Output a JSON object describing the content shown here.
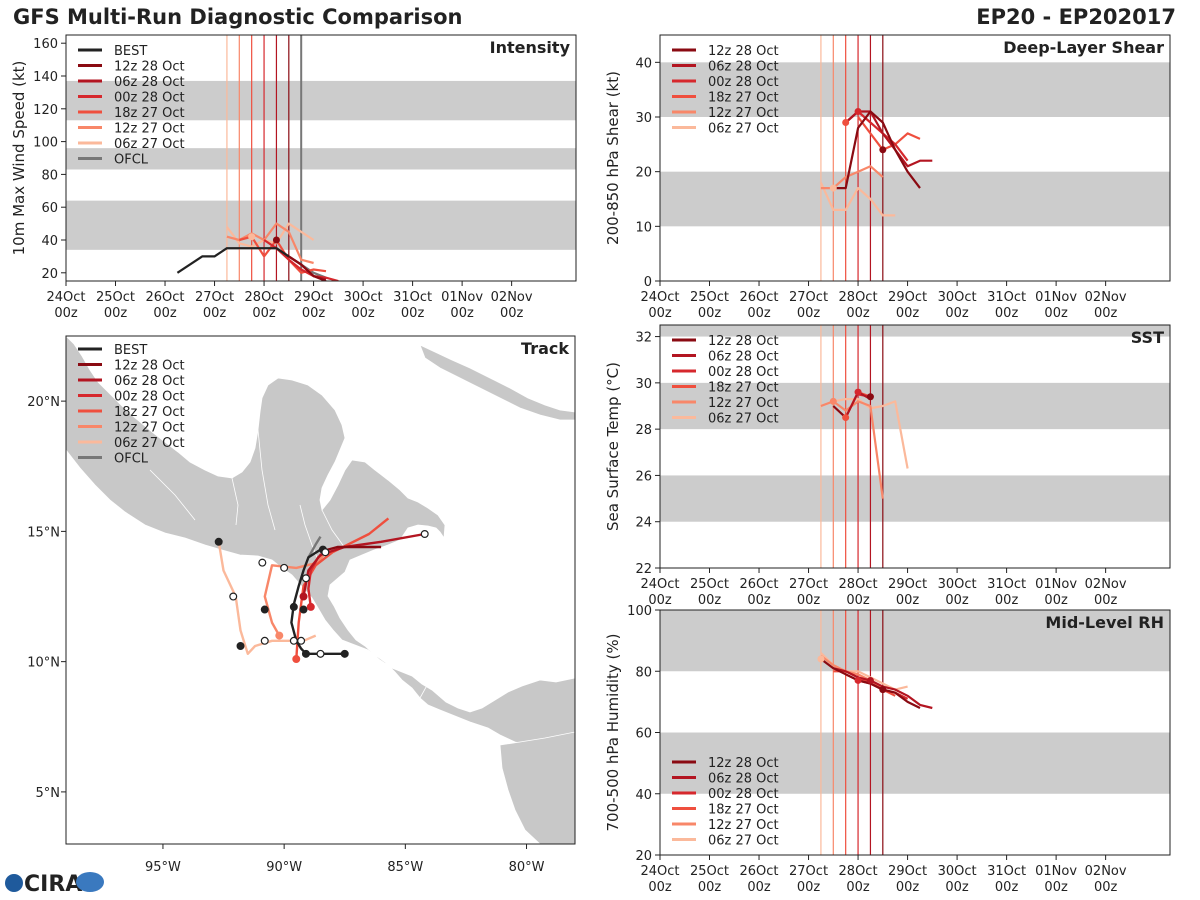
{
  "page": {
    "title_left": "GFS Multi-Run Diagnostic Comparison",
    "title_right": "EP20 - EP202017",
    "logo_text": "CIRA"
  },
  "time_ticks": [
    [
      "24Oct",
      "00z"
    ],
    [
      "25Oct",
      "00z"
    ],
    [
      "26Oct",
      "00z"
    ],
    [
      "27Oct",
      "00z"
    ],
    [
      "28Oct",
      "00z"
    ],
    [
      "29Oct",
      "00z"
    ],
    [
      "30Oct",
      "00z"
    ],
    [
      "31Oct",
      "00z"
    ],
    [
      "01Nov",
      "00z"
    ],
    [
      "02Nov",
      "00z"
    ]
  ],
  "runs": [
    {
      "name": "12z 28 Oct",
      "color": "#8a0a12",
      "init_day": 4.5
    },
    {
      "name": "06z 28 Oct",
      "color": "#b31521",
      "init_day": 4.25
    },
    {
      "name": "00z 28 Oct",
      "color": "#d6282d",
      "init_day": 4.0
    },
    {
      "name": "18z 27 Oct",
      "color": "#ef4f3e",
      "init_day": 3.75
    },
    {
      "name": "12z 27 Oct",
      "color": "#f88769",
      "init_day": 3.5
    },
    {
      "name": "06z 27 Oct",
      "color": "#fbb99b",
      "init_day": 3.25
    }
  ],
  "best_color": "#222222",
  "ofcl_color": "#777777",
  "chart_data": [
    {
      "id": "intensity",
      "type": "line",
      "panel_label": "Intensity",
      "ylabel": "10m Max Wind Speed (kt)",
      "xlim": [
        0,
        10.3
      ],
      "ylim": [
        15,
        165
      ],
      "yticks": [
        20,
        40,
        60,
        80,
        100,
        120,
        140,
        160
      ],
      "bands": [
        [
          34,
          64
        ],
        [
          83,
          96
        ],
        [
          113,
          137
        ]
      ],
      "legend": [
        "BEST",
        "12z 28 Oct",
        "06z 28 Oct",
        "00z 28 Oct",
        "18z 27 Oct",
        "12z 27 Oct",
        "06z 27 Oct",
        "OFCL"
      ],
      "ofcl_line_day": 4.75,
      "series": [
        {
          "name": "BEST",
          "x": [
            2.25,
            2.75,
            3.0,
            3.25,
            3.5,
            3.75,
            4.0,
            4.25,
            4.5
          ],
          "y": [
            20,
            30,
            30,
            35,
            35,
            35,
            35,
            35,
            30
          ]
        },
        {
          "name": "12z 28 Oct",
          "x": [
            4.5,
            4.75,
            5.0,
            5.25
          ],
          "y": [
            30,
            25,
            18,
            15
          ]
        },
        {
          "name": "06z 28 Oct",
          "x": [
            4.25,
            4.5,
            4.75,
            5.0,
            5.25
          ],
          "y": [
            35,
            30,
            25,
            18,
            16
          ]
        },
        {
          "name": "00z 28 Oct",
          "x": [
            4.0,
            4.25,
            4.5,
            4.75,
            5.0,
            5.25,
            5.5
          ],
          "y": [
            40,
            35,
            28,
            22,
            18,
            17,
            15
          ]
        },
        {
          "name": "18z 27 Oct",
          "x": [
            3.5,
            3.75,
            4.0,
            4.25,
            4.5,
            4.75,
            5.0,
            5.25
          ],
          "y": [
            40,
            42,
            30,
            40,
            28,
            20,
            22,
            21
          ]
        },
        {
          "name": "12z 27 Oct",
          "x": [
            3.25,
            3.5,
            3.75,
            4.0,
            4.25,
            4.5,
            4.75,
            5.0
          ],
          "y": [
            42,
            40,
            44,
            40,
            50,
            45,
            28,
            26
          ]
        },
        {
          "name": "06z 27 Oct",
          "x": [
            3.25,
            3.5,
            3.75,
            4.0,
            4.25,
            4.5,
            4.75,
            5.0
          ],
          "y": [
            48,
            38,
            36,
            40,
            38,
            50,
            45,
            40
          ]
        },
        {
          "name": "OFCL",
          "x": [
            4.5,
            4.75,
            5.0,
            5.25
          ],
          "y": [
            30,
            25,
            20,
            17
          ]
        }
      ],
      "markers": [
        {
          "x": 3.75,
          "y": 42,
          "s": "06z 27 Oct"
        },
        {
          "x": 4.25,
          "y": 40,
          "s": "12z 28 Oct"
        }
      ]
    },
    {
      "id": "shear",
      "type": "line",
      "panel_label": "Deep-Layer Shear",
      "ylabel": "200-850 hPa Shear (kt)",
      "xlim": [
        0,
        10.3
      ],
      "ylim": [
        0,
        45
      ],
      "yticks": [
        0,
        10,
        20,
        30,
        40
      ],
      "bands": [
        [
          10,
          20
        ],
        [
          30,
          40
        ]
      ],
      "legend": [
        "12z 28 Oct",
        "06z 28 Oct",
        "00z 28 Oct",
        "18z 27 Oct",
        "12z 27 Oct",
        "06z 27 Oct"
      ],
      "series": [
        {
          "name": "12z 28 Oct",
          "x": [
            3.5,
            3.75,
            4.0,
            4.25,
            4.5,
            4.75,
            5.0,
            5.25
          ],
          "y": [
            17,
            17,
            28,
            31,
            29,
            24,
            20,
            17
          ]
        },
        {
          "name": "06z 28 Oct",
          "x": [
            3.75,
            4.0,
            4.25,
            4.5,
            4.75,
            5.0,
            5.25,
            5.5
          ],
          "y": [
            29,
            31,
            31,
            27,
            24,
            21,
            22,
            22
          ]
        },
        {
          "name": "00z 28 Oct",
          "x": [
            3.75,
            4.0,
            4.25,
            4.5,
            4.75,
            5.0
          ],
          "y": [
            29,
            31,
            29,
            27,
            25,
            22
          ]
        },
        {
          "name": "18z 27 Oct",
          "x": [
            4.0,
            4.25,
            4.5,
            4.75,
            5.0,
            5.25
          ],
          "y": [
            30,
            27,
            24,
            25,
            27,
            26
          ]
        },
        {
          "name": "12z 27 Oct",
          "x": [
            3.25,
            3.5,
            3.75,
            4.0,
            4.25,
            4.5
          ],
          "y": [
            17,
            17,
            19,
            20,
            21,
            19
          ]
        },
        {
          "name": "06z 27 Oct",
          "x": [
            3.25,
            3.5,
            3.75,
            4.0,
            4.25,
            4.5,
            4.75
          ],
          "y": [
            18,
            13,
            13,
            17,
            15,
            12,
            12
          ]
        }
      ],
      "markers": [
        {
          "x": 4.0,
          "y": 31,
          "s": "00z 28 Oct"
        },
        {
          "x": 4.5,
          "y": 24,
          "s": "12z 28 Oct"
        },
        {
          "x": 3.75,
          "y": 29,
          "s": "18z 27 Oct"
        },
        {
          "x": 3.5,
          "y": 17,
          "s": "06z 27 Oct"
        }
      ]
    },
    {
      "id": "sst",
      "type": "line",
      "panel_label": "SST",
      "ylabel": "Sea Surface Temp (°C)",
      "xlim": [
        0,
        10.3
      ],
      "ylim": [
        22,
        32.5
      ],
      "yticks": [
        22,
        24,
        26,
        28,
        30,
        32
      ],
      "bands": [
        [
          24,
          26
        ],
        [
          28,
          30
        ],
        [
          32,
          32.5
        ]
      ],
      "legend": [
        "12z 28 Oct",
        "06z 28 Oct",
        "00z 28 Oct",
        "18z 27 Oct",
        "12z 27 Oct",
        "06z 27 Oct"
      ],
      "series": [
        {
          "name": "12z 28 Oct",
          "x": [
            3.5,
            3.75
          ],
          "y": [
            29.0,
            28.5
          ]
        },
        {
          "name": "06z 28 Oct",
          "x": [
            3.75,
            4.0,
            4.25
          ],
          "y": [
            28.5,
            29.6,
            29.3
          ]
        },
        {
          "name": "00z 28 Oct",
          "x": [
            4.0,
            4.25
          ],
          "y": [
            29.5,
            29.4
          ]
        },
        {
          "name": "18z 27 Oct",
          "x": [
            3.75,
            4.0,
            4.25
          ],
          "y": [
            28.5,
            29.6,
            29.4
          ]
        },
        {
          "name": "12z 27 Oct",
          "x": [
            3.25,
            3.5,
            3.75,
            4.0,
            4.25,
            4.5
          ],
          "y": [
            29.0,
            29.2,
            28.8,
            29.2,
            29.0,
            25.0
          ]
        },
        {
          "name": "06z 27 Oct",
          "x": [
            3.25,
            3.5,
            3.75,
            4.0,
            4.25,
            4.5,
            4.75,
            5.0
          ],
          "y": [
            29.0,
            29.2,
            29.3,
            29.3,
            28.9,
            29.0,
            29.2,
            26.3
          ]
        }
      ],
      "markers": [
        {
          "x": 4.0,
          "y": 29.6,
          "s": "00z 28 Oct"
        },
        {
          "x": 4.25,
          "y": 29.4,
          "s": "12z 28 Oct"
        },
        {
          "x": 3.75,
          "y": 28.5,
          "s": "18z 27 Oct"
        },
        {
          "x": 3.5,
          "y": 29.2,
          "s": "12z 27 Oct"
        }
      ]
    },
    {
      "id": "rh",
      "type": "line",
      "panel_label": "Mid-Level RH",
      "ylabel": "700-500 hPa Humidity (%)",
      "xlim": [
        0,
        10.3
      ],
      "ylim": [
        20,
        100
      ],
      "yticks": [
        20,
        40,
        60,
        80,
        100
      ],
      "bands": [
        [
          40,
          60
        ],
        [
          80,
          100
        ]
      ],
      "legend": [
        "12z 28 Oct",
        "06z 28 Oct",
        "00z 28 Oct",
        "18z 27 Oct",
        "12z 27 Oct",
        "06z 27 Oct"
      ],
      "series": [
        {
          "name": "12z 28 Oct",
          "x": [
            3.25,
            3.5,
            3.75,
            4.0,
            4.25,
            4.5,
            4.75,
            5.0,
            5.25
          ],
          "y": [
            84,
            81,
            79,
            77,
            76,
            74,
            73,
            70,
            68
          ]
        },
        {
          "name": "06z 28 Oct",
          "x": [
            3.5,
            3.75,
            4.0,
            4.25,
            4.5,
            4.75,
            5.0,
            5.25,
            5.5
          ],
          "y": [
            81,
            80,
            78,
            77,
            75,
            74,
            72,
            69,
            68
          ]
        },
        {
          "name": "00z 28 Oct",
          "x": [
            3.75,
            4.0,
            4.25,
            4.5,
            4.75,
            5.0
          ],
          "y": [
            79,
            77,
            76,
            74,
            73,
            71
          ]
        },
        {
          "name": "18z 27 Oct",
          "x": [
            3.5,
            3.75,
            4.0,
            4.25,
            4.5,
            4.75
          ],
          "y": [
            80,
            80,
            78,
            76,
            74,
            72
          ]
        },
        {
          "name": "12z 27 Oct",
          "x": [
            3.25,
            3.5,
            3.75,
            4.0,
            4.25,
            4.5,
            4.75,
            5.0
          ],
          "y": [
            85,
            82,
            80,
            79,
            77,
            74,
            73,
            71
          ]
        },
        {
          "name": "06z 27 Oct",
          "x": [
            3.25,
            3.5,
            3.75,
            4.0,
            4.25,
            4.5,
            4.75,
            5.0
          ],
          "y": [
            86,
            82,
            80,
            80,
            78,
            76,
            74,
            75
          ]
        }
      ],
      "markers": [
        {
          "x": 3.25,
          "y": 84,
          "s": "06z 27 Oct"
        },
        {
          "x": 4.0,
          "y": 77,
          "s": "00z 28 Oct"
        },
        {
          "x": 4.25,
          "y": 77,
          "s": "06z 28 Oct"
        },
        {
          "x": 4.5,
          "y": 74,
          "s": "12z 28 Oct"
        }
      ]
    },
    {
      "id": "track",
      "type": "scatter",
      "panel_label": "Track",
      "xlim": [
        -99,
        -78
      ],
      "ylim": [
        3,
        22.5
      ],
      "xticks": [
        [
          -95,
          "95°W"
        ],
        [
          -90,
          "90°W"
        ],
        [
          -85,
          "85°W"
        ],
        [
          -80,
          "80°W"
        ]
      ],
      "yticks": [
        [
          5,
          "5°N"
        ],
        [
          10,
          "10°N"
        ],
        [
          15,
          "15°N"
        ],
        [
          20,
          "20°N"
        ]
      ],
      "legend": [
        "BEST",
        "12z 28 Oct",
        "06z 28 Oct",
        "00z 28 Oct",
        "18z 27 Oct",
        "12z 27 Oct",
        "06z 27 Oct",
        "OFCL"
      ],
      "series": [
        {
          "name": "BEST",
          "lon": [
            -87.5,
            -88.5,
            -88.8,
            -89.1,
            -89.3,
            -89.5,
            -89.7,
            -89.6,
            -89.4,
            -89.2,
            -89.0,
            -88.5
          ],
          "lat": [
            10.3,
            10.3,
            10.3,
            10.3,
            10.5,
            10.8,
            11.5,
            12.2,
            12.9,
            13.5,
            14.0,
            14.3
          ]
        },
        {
          "name": "12z 28 Oct",
          "lon": [
            -88.5,
            -88.2,
            -87.8,
            -87.0,
            -86.0
          ],
          "lat": [
            14.2,
            14.3,
            14.4,
            14.4,
            14.4
          ]
        },
        {
          "name": "06z 28 Oct",
          "lon": [
            -89.2,
            -89.0,
            -88.5,
            -87.5,
            -86.0,
            -84.2
          ],
          "lat": [
            12.5,
            13.5,
            14.1,
            14.4,
            14.6,
            14.9
          ]
        },
        {
          "name": "00z 28 Oct",
          "lon": [
            -88.9,
            -89.0,
            -88.9,
            -88.6,
            -88.2
          ],
          "lat": [
            12.1,
            12.8,
            13.5,
            14.0,
            14.3
          ]
        },
        {
          "name": "18z 27 Oct",
          "lon": [
            -89.5,
            -89.4,
            -89.2,
            -88.7,
            -88.0,
            -86.5,
            -85.7
          ],
          "lat": [
            10.1,
            11.5,
            12.9,
            13.7,
            14.2,
            14.9,
            15.5
          ]
        },
        {
          "name": "12z 27 Oct",
          "lon": [
            -90.2,
            -90.5,
            -90.8,
            -90.5,
            -89.5,
            -88.6,
            -88.3
          ],
          "lat": [
            11.0,
            11.5,
            12.5,
            13.7,
            13.6,
            13.8,
            14.2
          ]
        },
        {
          "name": "06z 27 Oct",
          "lon": [
            -92.7,
            -92.5,
            -92.0,
            -91.8,
            -91.5,
            -91.2,
            -90.5,
            -90.0,
            -89.2,
            -88.7
          ],
          "lat": [
            14.6,
            13.5,
            12.5,
            11.2,
            10.3,
            10.6,
            10.8,
            10.8,
            10.8,
            11.0
          ]
        },
        {
          "name": "OFCL",
          "lon": [
            -89.0,
            -88.7,
            -88.5
          ],
          "lat": [
            14.0,
            14.5,
            14.8
          ]
        }
      ],
      "markers": [
        {
          "lon": -87.5,
          "lat": 10.3,
          "s": "BEST",
          "f": 1
        },
        {
          "lon": -88.5,
          "lat": 10.3,
          "s": "BEST",
          "f": 0
        },
        {
          "lon": -89.1,
          "lat": 10.3,
          "s": "BEST",
          "f": 1
        },
        {
          "lon": -89.3,
          "lat": 10.8,
          "s": "BEST",
          "f": 0
        },
        {
          "lon": -89.6,
          "lat": 12.1,
          "s": "BEST",
          "f": 1
        },
        {
          "lon": -89.2,
          "lat": 12.0,
          "s": "BEST",
          "f": 1
        },
        {
          "lon": -89.1,
          "lat": 13.2,
          "s": "BEST",
          "f": 0
        },
        {
          "lon": -88.4,
          "lat": 14.3,
          "s": "BEST",
          "f": 1
        },
        {
          "lon": -84.2,
          "lat": 14.9,
          "s": "06z 28 Oct",
          "f": 0
        },
        {
          "lon": -88.9,
          "lat": 12.1,
          "s": "00z 28 Oct",
          "f": 1
        },
        {
          "lon": -89.2,
          "lat": 12.5,
          "s": "06z 28 Oct",
          "f": 1
        },
        {
          "lon": -89.5,
          "lat": 10.1,
          "s": "18z 27 Oct",
          "f": 1
        },
        {
          "lon": -90.2,
          "lat": 11.0,
          "s": "12z 27 Oct",
          "f": 1
        },
        {
          "lon": -90.8,
          "lat": 12.0,
          "s": "BEST",
          "f": 1
        },
        {
          "lon": -90.9,
          "lat": 13.8,
          "s": "BEST",
          "f": 0
        },
        {
          "lon": -90.0,
          "lat": 13.6,
          "s": "BEST",
          "f": 0
        },
        {
          "lon": -88.3,
          "lat": 14.2,
          "s": "12z 27 Oct",
          "f": 0
        },
        {
          "lon": -92.7,
          "lat": 14.6,
          "s": "BEST",
          "f": 1
        },
        {
          "lon": -92.1,
          "lat": 12.5,
          "s": "06z 27 Oct",
          "f": 0
        },
        {
          "lon": -91.8,
          "lat": 10.6,
          "s": "BEST",
          "f": 1
        },
        {
          "lon": -90.8,
          "lat": 10.8,
          "s": "BEST",
          "f": 0
        },
        {
          "lon": -89.6,
          "lat": 10.8,
          "s": "BEST",
          "f": 0
        }
      ]
    }
  ]
}
